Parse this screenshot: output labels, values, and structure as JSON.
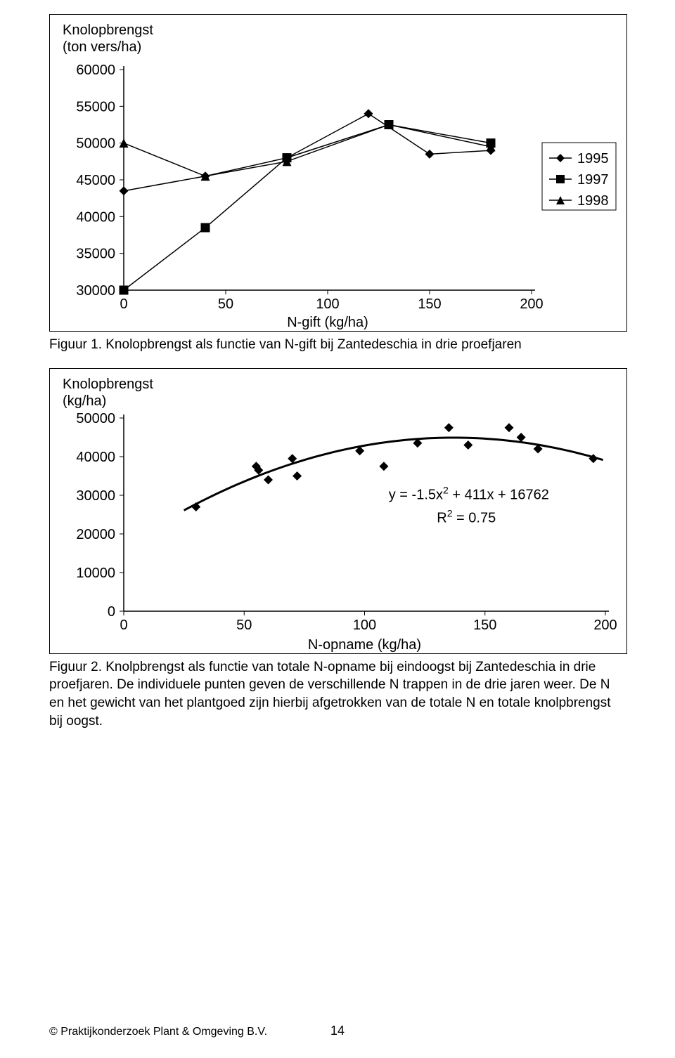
{
  "chart1": {
    "type": "line",
    "border_color": "#000000",
    "background_color": "#ffffff",
    "line_color": "#000000",
    "marker_edge": "#000000",
    "marker_fill": "#000000",
    "y_title_line1": "Knolopbrengst",
    "y_title_line2": "(ton vers/ha)",
    "x_title": "N-gift (kg/ha)",
    "title_fontsize": 20,
    "tick_fontsize": 20,
    "xlim": [
      0,
      200
    ],
    "ylim": [
      30000,
      60000
    ],
    "xticks": [
      0,
      50,
      100,
      150,
      200
    ],
    "yticks": [
      30000,
      35000,
      40000,
      45000,
      50000,
      55000,
      60000
    ],
    "series": [
      {
        "name": "1995",
        "marker": "diamond",
        "x": [
          0,
          40,
          80,
          120,
          150,
          180
        ],
        "y": [
          43500,
          45500,
          48000,
          54000,
          48500,
          49000
        ]
      },
      {
        "name": "1997",
        "marker": "square",
        "x": [
          0,
          40,
          80,
          130,
          180
        ],
        "y": [
          30000,
          38500,
          48000,
          52500,
          50000
        ]
      },
      {
        "name": "1998",
        "marker": "triangle",
        "x": [
          0,
          40,
          80,
          130,
          180
        ],
        "y": [
          50000,
          45500,
          47500,
          52500,
          49500
        ]
      }
    ],
    "legend": {
      "items": [
        "1995",
        "1997",
        "1998"
      ],
      "markers": [
        "diamond",
        "square",
        "triangle"
      ],
      "border_color": "#000000",
      "fontsize": 20
    }
  },
  "caption1": "Figuur 1. Knolopbrengst als functie van N-gift bij Zantedeschia in drie proefjaren",
  "chart2": {
    "type": "scatter",
    "border_color": "#000000",
    "background_color": "#ffffff",
    "marker_fill": "#000000",
    "line_color": "#000000",
    "y_title_line1": "Knolopbrengst",
    "y_title_line2": "(kg/ha)",
    "x_title": "N-opname (kg/ha)",
    "title_fontsize": 20,
    "tick_fontsize": 20,
    "xlim": [
      0,
      200
    ],
    "ylim": [
      0,
      50000
    ],
    "xticks": [
      0,
      50,
      100,
      150,
      200
    ],
    "yticks": [
      0,
      10000,
      20000,
      30000,
      40000,
      50000
    ],
    "points": [
      {
        "x": 30,
        "y": 27000
      },
      {
        "x": 55,
        "y": 37500
      },
      {
        "x": 56,
        "y": 36500
      },
      {
        "x": 60,
        "y": 34000
      },
      {
        "x": 70,
        "y": 39500
      },
      {
        "x": 72,
        "y": 35000
      },
      {
        "x": 98,
        "y": 41500
      },
      {
        "x": 108,
        "y": 37500
      },
      {
        "x": 122,
        "y": 43500
      },
      {
        "x": 135,
        "y": 47500
      },
      {
        "x": 143,
        "y": 43000
      },
      {
        "x": 160,
        "y": 47500
      },
      {
        "x": 165,
        "y": 45000
      },
      {
        "x": 172,
        "y": 42000
      },
      {
        "x": 195,
        "y": 39500
      }
    ],
    "curve": {
      "a": -1.5,
      "b": 411,
      "c": 16762,
      "x_start": 25,
      "x_end": 200
    },
    "equation_line1": "y = -1.5x² + 411x + 16762",
    "equation_line2": "R² = 0.75",
    "equation_fontsize": 20
  },
  "caption2": "Figuur 2. Knolpbrengst als functie van totale N-opname bij eindoogst bij Zantedeschia in drie proefjaren. De individuele punten geven de verschillende N trappen in de drie jaren weer. De N en het gewicht van het plantgoed zijn hierbij afgetrokken van de totale N en totale knolpbrengst bij oogst.",
  "footer_text": "© Praktijkonderzoek Plant & Omgeving B.V.",
  "page_number": "14"
}
